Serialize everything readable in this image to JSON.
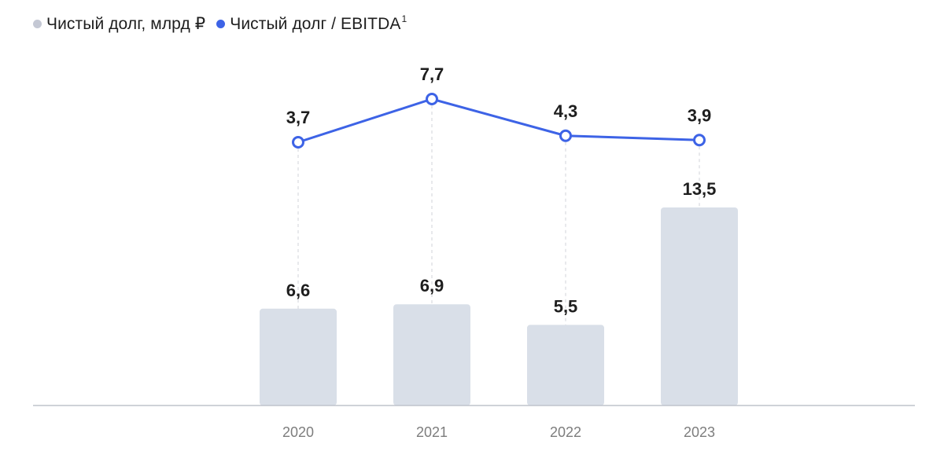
{
  "chart_data": {
    "type": "bar+line",
    "categories": [
      "2020",
      "2021",
      "2022",
      "2023"
    ],
    "bar_labels": [
      "6,6",
      "6,9",
      "5,5",
      "13,5"
    ],
    "line_labels": [
      "3,7",
      "7,7",
      "4,3",
      "3,9"
    ],
    "series": [
      {
        "name": "Чистый долг, млрд ₽",
        "kind": "bar",
        "values": [
          6.6,
          6.9,
          5.5,
          13.5
        ],
        "color": "#d9dfe8"
      },
      {
        "name": "Чистый долг / EBITDA",
        "name_sup": "1",
        "kind": "line",
        "values": [
          3.7,
          7.7,
          4.3,
          3.9
        ],
        "color": "#3d63e6"
      }
    ],
    "bar_ylim": [
      0,
      14.3
    ],
    "line_ylim": [
      3.0,
      8.5
    ],
    "legend_position": "top-left"
  },
  "colors": {
    "bar_legend_dot": "#c4c8d4",
    "line": "#3d63e6",
    "axis": "#bfc3cc",
    "guide": "#d0d3da"
  }
}
